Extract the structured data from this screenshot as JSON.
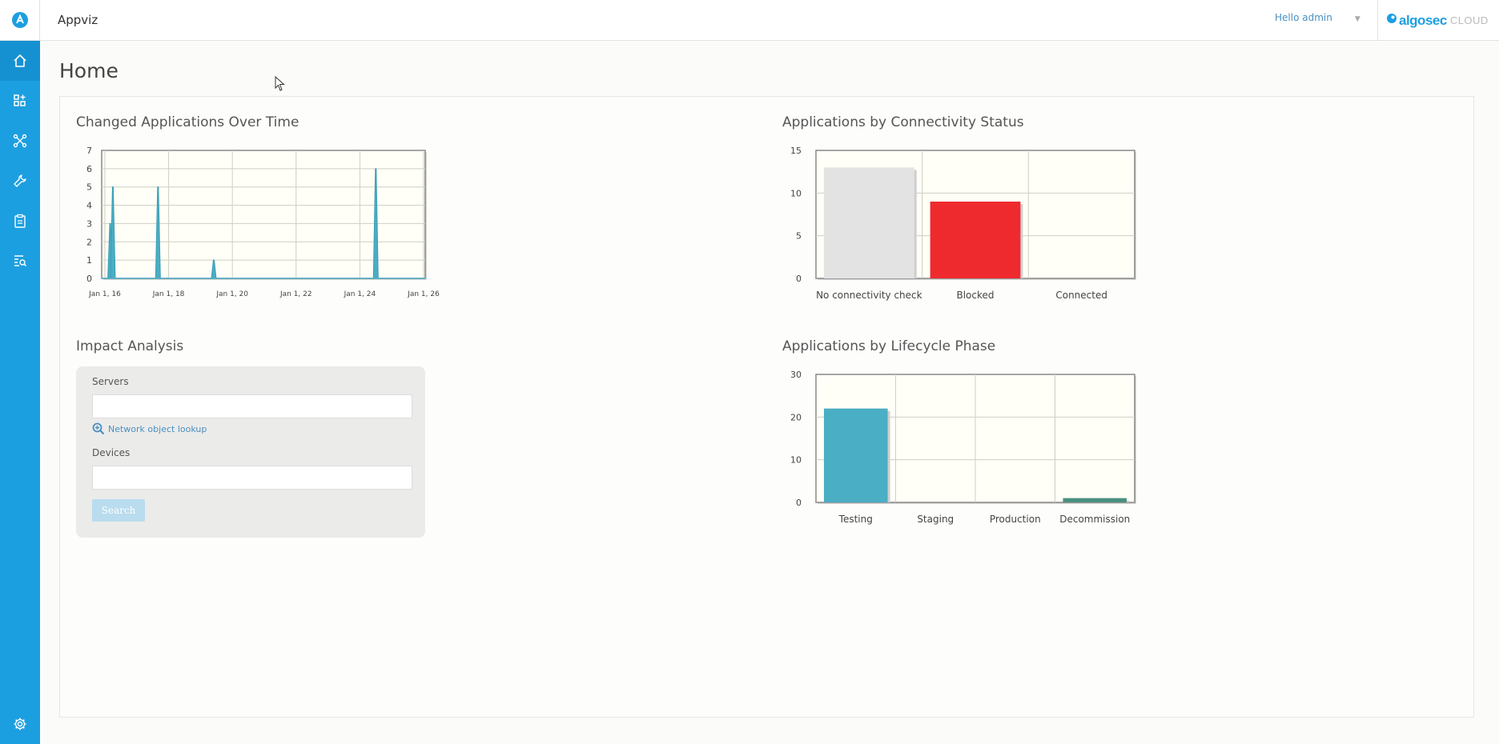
{
  "app": {
    "title": "Appviz"
  },
  "user": {
    "greeting": "Hello admin"
  },
  "brand": {
    "name": "algosec",
    "suffix": "CLOUD"
  },
  "page": {
    "title": "Home"
  },
  "sidebar": {
    "items": [
      {
        "name": "home",
        "icon": "home-icon",
        "active": true
      },
      {
        "name": "applications",
        "icon": "apps-grid-icon",
        "active": false
      },
      {
        "name": "network",
        "icon": "network-icon",
        "active": false
      },
      {
        "name": "tools",
        "icon": "wrench-icon",
        "active": false
      },
      {
        "name": "requests",
        "icon": "clipboard-icon",
        "active": false
      },
      {
        "name": "search",
        "icon": "search-list-icon",
        "active": false
      },
      {
        "name": "settings",
        "icon": "gear-icon",
        "active": false
      }
    ]
  },
  "widgets": {
    "changed_apps": {
      "title": "Changed Applications Over Time"
    },
    "connectivity": {
      "title": "Applications by Connectivity Status"
    },
    "impact": {
      "title": "Impact Analysis",
      "servers_label": "Servers",
      "servers_value": "",
      "lookup_label": "Network object lookup",
      "devices_label": "Devices",
      "devices_value": "",
      "search_label": "Search"
    },
    "lifecycle": {
      "title": "Applications by Lifecycle Phase"
    }
  },
  "colors": {
    "accent": "#1c9fe0",
    "teal": "#4aaec4",
    "red": "#ee2a2e",
    "grey_bar": "#e3e3e3",
    "dark_green": "#4a9080",
    "plot_bg": "#fffef7"
  },
  "chart_data": [
    {
      "type": "area",
      "xticks": [
        "Jan 1, 16",
        "Jan 1, 18",
        "Jan 1, 20",
        "Jan 1, 22",
        "Jan 1, 24",
        "Jan 1, 26"
      ],
      "ylim": [
        0,
        7
      ],
      "yticks": [
        0,
        1,
        2,
        3,
        4,
        5,
        6,
        7
      ],
      "grid": true,
      "series": [
        {
          "points": [
            {
              "x": "2016-03-01",
              "y": 3
            },
            {
              "x": "2016-04-01",
              "y": 5
            },
            {
              "x": "2017-09-01",
              "y": 5
            },
            {
              "x": "2019-06-01",
              "y": 1
            },
            {
              "x": "2024-07-01",
              "y": 6
            }
          ]
        }
      ]
    },
    {
      "type": "bar",
      "categories": [
        "No connectivity check",
        "Blocked",
        "Connected"
      ],
      "values": [
        13,
        9,
        0
      ],
      "colors": [
        "#e3e3e3",
        "#ee2a2e",
        "#cccccc"
      ],
      "ylim": [
        0,
        15
      ],
      "yticks": [
        0,
        5,
        10,
        15
      ],
      "grid": true
    },
    {
      "type": "bar",
      "categories": [
        "Testing",
        "Staging",
        "Production",
        "Decommission"
      ],
      "values": [
        22,
        0,
        0,
        1
      ],
      "colors": [
        "#4aaec4",
        "#4aaec4",
        "#4aaec4",
        "#4a9080"
      ],
      "ylim": [
        0,
        30
      ],
      "yticks": [
        0,
        10,
        20,
        30
      ],
      "grid": true
    }
  ]
}
